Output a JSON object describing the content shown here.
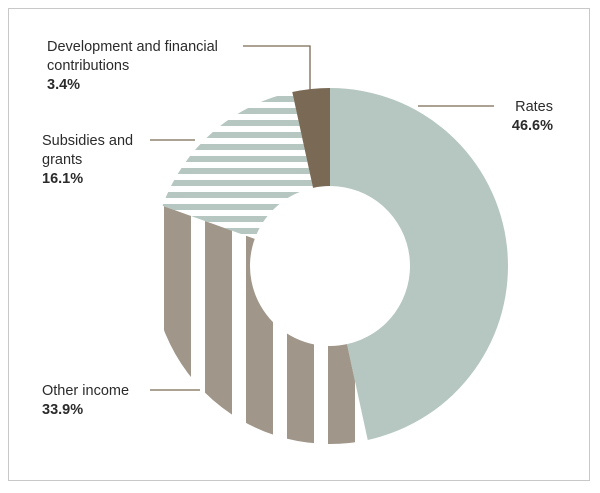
{
  "chart_data": {
    "type": "pie",
    "title": "",
    "slices": [
      {
        "label": "Rates",
        "value": 46.6,
        "value_label": "46.6%",
        "color": "#b5c7c0",
        "pattern": "solid"
      },
      {
        "label": "Other income",
        "value": 33.9,
        "value_label": "33.9%",
        "color": "#a0968a",
        "pattern": "vertical-stripes"
      },
      {
        "label": "Subsidies and grants",
        "value": 16.1,
        "value_label": "16.1%",
        "color": "#b5c7c0",
        "pattern": "horizontal-stripes"
      },
      {
        "label": "Development and financial contributions",
        "value": 3.4,
        "value_label": "3.4%",
        "color": "#7a6a55",
        "pattern": "solid"
      }
    ],
    "legend": "none",
    "donut": true
  },
  "labels": {
    "rates": {
      "name": "Rates",
      "pct": "46.6%"
    },
    "other": {
      "name": "Other income",
      "pct": "33.9%"
    },
    "subsidies": {
      "line1": "Subsidies and",
      "line2": "grants",
      "pct": "16.1%"
    },
    "development": {
      "line1": "Development and financial",
      "line2": "contributions",
      "pct": "3.4%"
    }
  },
  "colors": {
    "leader_line": "#7a6a55",
    "frame": "#c8c8c8"
  }
}
